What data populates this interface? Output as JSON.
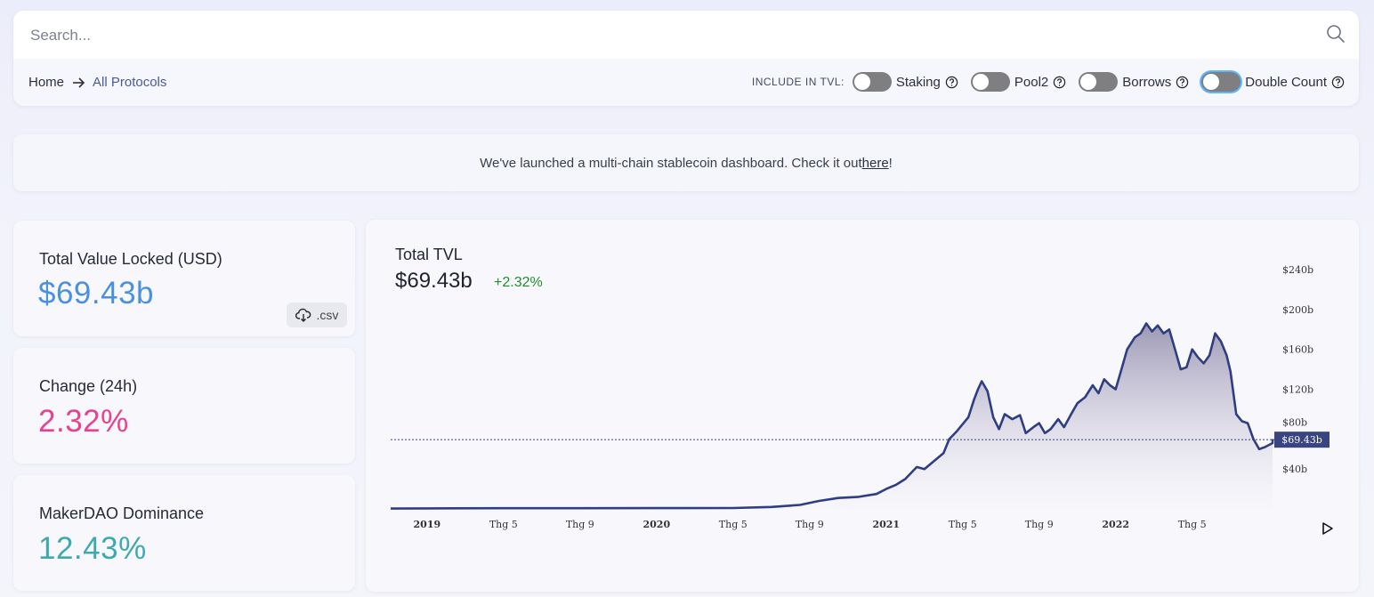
{
  "search": {
    "placeholder": "Search..."
  },
  "breadcrumb": {
    "home": "Home",
    "current": "All Protocols"
  },
  "tvl_options": {
    "label": "INCLUDE IN TVL:",
    "items": [
      {
        "label": "Staking",
        "on": false
      },
      {
        "label": "Pool2",
        "on": false
      },
      {
        "label": "Borrows",
        "on": false
      },
      {
        "label": "Double Count",
        "on": false
      }
    ]
  },
  "banner": {
    "text": "We've launched a multi-chain stablecoin dashboard. Check it out ",
    "link": "here",
    "suffix": "!"
  },
  "stats": {
    "tvl": {
      "label": "Total Value Locked (USD)",
      "value": "$69.43b",
      "color": "#4a90e2"
    },
    "change": {
      "label": "Change (24h)",
      "value": "2.32%",
      "color": "#e8418f"
    },
    "dominance": {
      "label": "MakerDAO Dominance",
      "value": "12.43%",
      "color": "#3fa9b0"
    },
    "csv_label": ".csv"
  },
  "chart_header": {
    "title": "Total TVL",
    "value": "$69.43b",
    "change": "+2.32%"
  },
  "chart_data": {
    "type": "area",
    "x_ticks": [
      {
        "label": "2019",
        "month": 0,
        "year": true
      },
      {
        "label": "Thg 5",
        "month": 4,
        "year": false
      },
      {
        "label": "Thg 9",
        "month": 8,
        "year": false
      },
      {
        "label": "2020",
        "month": 12,
        "year": true
      },
      {
        "label": "Thg 5",
        "month": 16,
        "year": false
      },
      {
        "label": "Thg 9",
        "month": 20,
        "year": false
      },
      {
        "label": "2021",
        "month": 24,
        "year": true
      },
      {
        "label": "Thg 5",
        "month": 28,
        "year": false
      },
      {
        "label": "Thg 9",
        "month": 32,
        "year": false
      },
      {
        "label": "2022",
        "month": 36,
        "year": true
      },
      {
        "label": "Thg 5",
        "month": 40,
        "year": false
      }
    ],
    "y_ticks": [
      {
        "label": "$40b",
        "value": 40
      },
      {
        "label": "$80b",
        "value": 80
      },
      {
        "label": "$120b",
        "value": 120
      },
      {
        "label": "$160b",
        "value": 160
      },
      {
        "label": "$200b",
        "value": 200
      },
      {
        "label": "$240b",
        "value": 240
      }
    ],
    "ylim": [
      0,
      240
    ],
    "xlim_months": [
      -1.9,
      44.2
    ],
    "current_value": 69.43,
    "current_label": "$69.43b",
    "line_color": "#2f3e82",
    "series": [
      {
        "points": [
          [
            -1.9,
            0.4
          ],
          [
            0,
            0.5
          ],
          [
            4,
            0.7
          ],
          [
            8,
            0.7
          ],
          [
            12,
            0.8
          ],
          [
            16,
            0.9
          ],
          [
            18,
            2
          ],
          [
            19.5,
            4
          ],
          [
            20.5,
            8
          ],
          [
            21.5,
            11
          ],
          [
            22.5,
            12
          ],
          [
            23.5,
            15
          ],
          [
            24,
            20
          ],
          [
            24.5,
            24
          ],
          [
            25,
            30
          ],
          [
            25.6,
            42
          ],
          [
            26,
            40
          ],
          [
            26.5,
            48
          ],
          [
            27,
            56
          ],
          [
            27.3,
            70
          ],
          [
            27.7,
            78
          ],
          [
            28.3,
            92
          ],
          [
            28.6,
            110
          ],
          [
            28.8,
            120
          ],
          [
            29,
            128
          ],
          [
            29.3,
            118
          ],
          [
            29.6,
            92
          ],
          [
            29.9,
            80
          ],
          [
            30.2,
            95
          ],
          [
            30.6,
            90
          ],
          [
            31,
            94
          ],
          [
            31.3,
            76
          ],
          [
            31.7,
            82
          ],
          [
            32,
            86
          ],
          [
            32.3,
            76
          ],
          [
            32.6,
            80
          ],
          [
            33,
            90
          ],
          [
            33.3,
            82
          ],
          [
            33.7,
            96
          ],
          [
            34,
            106
          ],
          [
            34.4,
            112
          ],
          [
            34.8,
            124
          ],
          [
            35.1,
            116
          ],
          [
            35.4,
            130
          ],
          [
            35.7,
            124
          ],
          [
            36,
            120
          ],
          [
            36.3,
            140
          ],
          [
            36.6,
            160
          ],
          [
            37,
            172
          ],
          [
            37.3,
            176
          ],
          [
            37.6,
            186
          ],
          [
            37.9,
            178
          ],
          [
            38.2,
            184
          ],
          [
            38.5,
            176
          ],
          [
            38.8,
            180
          ],
          [
            39.1,
            160
          ],
          [
            39.4,
            140
          ],
          [
            39.7,
            142
          ],
          [
            40,
            160
          ],
          [
            40.3,
            152
          ],
          [
            40.6,
            146
          ],
          [
            40.9,
            154
          ],
          [
            41.2,
            176
          ],
          [
            41.5,
            168
          ],
          [
            41.8,
            154
          ],
          [
            42,
            138
          ],
          [
            42.3,
            95
          ],
          [
            42.6,
            88
          ],
          [
            42.9,
            86
          ],
          [
            43.2,
            70
          ],
          [
            43.5,
            60
          ],
          [
            43.8,
            62
          ],
          [
            44.2,
            66
          ],
          [
            44.2,
            70
          ]
        ]
      }
    ]
  }
}
